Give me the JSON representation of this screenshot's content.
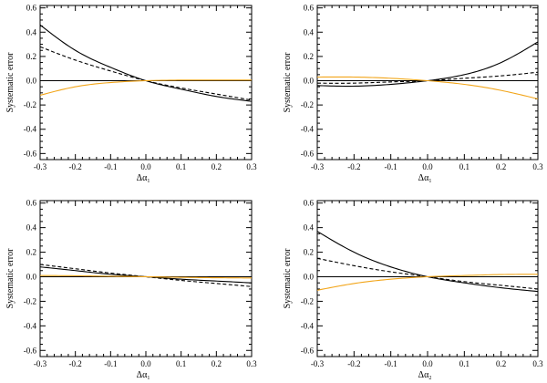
{
  "colors": {
    "axes": "#000000",
    "series_black": "#000000",
    "series_orange": "#f2a51a"
  },
  "chart_data": [
    {
      "type": "line",
      "ylabel": "Systematic error",
      "xlabel_symbol": "Δα",
      "xlabel_subscript": "1",
      "xlim": [
        -0.3,
        0.3
      ],
      "ylim": [
        -0.65,
        0.62
      ],
      "xticks": [
        -0.3,
        -0.2,
        -0.1,
        0.0,
        0.1,
        0.2,
        0.3
      ],
      "xtick_labels": [
        "-0.3",
        "-0.2",
        "-0.1",
        "0.0",
        "0.1",
        "0.2",
        "0.3"
      ],
      "yticks": [
        -0.6,
        -0.4,
        -0.2,
        0.0,
        0.2,
        0.4,
        0.6
      ],
      "ytick_labels": [
        "-0.6",
        "-0.4",
        "-0.2",
        "0.0",
        "0.2",
        "0.4",
        "0.6"
      ],
      "reference_y": 0,
      "series": [
        {
          "style": "solid",
          "color": "black",
          "x": [
            -0.3,
            -0.2,
            -0.1,
            0.0,
            0.1,
            0.2,
            0.3
          ],
          "y": [
            0.46,
            0.25,
            0.11,
            0.0,
            -0.07,
            -0.13,
            -0.17
          ]
        },
        {
          "style": "dashed",
          "color": "black",
          "x": [
            -0.3,
            -0.2,
            -0.1,
            0.0,
            0.1,
            0.2,
            0.3
          ],
          "y": [
            0.28,
            0.17,
            0.08,
            0.0,
            -0.06,
            -0.11,
            -0.16
          ]
        },
        {
          "style": "solid",
          "color": "orange",
          "x": [
            -0.3,
            -0.2,
            -0.1,
            0.0,
            0.1,
            0.2,
            0.3
          ],
          "y": [
            -0.12,
            -0.05,
            -0.015,
            0.0,
            0.005,
            0.005,
            0.005
          ]
        }
      ]
    },
    {
      "type": "line",
      "ylabel": "Systematic error",
      "xlabel_symbol": "Δα",
      "xlabel_subscript": "1",
      "xlim": [
        -0.3,
        0.3
      ],
      "ylim": [
        -0.65,
        0.62
      ],
      "xticks": [
        -0.3,
        -0.2,
        -0.1,
        0.0,
        0.1,
        0.2,
        0.3
      ],
      "xtick_labels": [
        "-0.3",
        "-0.2",
        "-0.1",
        "0.0",
        "0.1",
        "0.2",
        "0.3"
      ],
      "yticks": [
        -0.6,
        -0.4,
        -0.2,
        0.0,
        0.2,
        0.4,
        0.6
      ],
      "ytick_labels": [
        "-0.6",
        "-0.4",
        "-0.2",
        "0.0",
        "0.2",
        "0.4",
        "0.6"
      ],
      "reference_y": 0,
      "series": [
        {
          "style": "solid",
          "color": "black",
          "x": [
            -0.3,
            -0.2,
            -0.1,
            0.0,
            0.1,
            0.2,
            0.3
          ],
          "y": [
            -0.04,
            -0.045,
            -0.03,
            0.0,
            0.05,
            0.15,
            0.32
          ]
        },
        {
          "style": "dashed",
          "color": "black",
          "x": [
            -0.3,
            -0.2,
            -0.1,
            0.0,
            0.1,
            0.2,
            0.3
          ],
          "y": [
            -0.02,
            -0.02,
            -0.01,
            0.0,
            0.02,
            0.04,
            0.07
          ]
        },
        {
          "style": "solid",
          "color": "orange",
          "x": [
            -0.3,
            -0.2,
            -0.1,
            0.0,
            0.1,
            0.2,
            0.3
          ],
          "y": [
            0.03,
            0.03,
            0.02,
            0.0,
            -0.03,
            -0.08,
            -0.15
          ]
        }
      ]
    },
    {
      "type": "line",
      "ylabel": "Systematic error",
      "xlabel_symbol": "Δα",
      "xlabel_subscript": "1",
      "xlim": [
        -0.3,
        0.3
      ],
      "ylim": [
        -0.65,
        0.62
      ],
      "xticks": [
        -0.3,
        -0.2,
        -0.1,
        0.0,
        0.1,
        0.2,
        0.3
      ],
      "xtick_labels": [
        "-0.3",
        "-0.2",
        "-0.1",
        "0.0",
        "0.1",
        "0.2",
        "0.3"
      ],
      "yticks": [
        -0.6,
        -0.4,
        -0.2,
        0.0,
        0.2,
        0.4,
        0.6
      ],
      "ytick_labels": [
        "-0.6",
        "-0.4",
        "-0.2",
        "0.0",
        "0.2",
        "0.4",
        "0.6"
      ],
      "reference_y": 0,
      "series": [
        {
          "style": "solid",
          "color": "black",
          "x": [
            -0.3,
            -0.2,
            -0.1,
            0.0,
            0.1,
            0.2,
            0.3
          ],
          "y": [
            0.08,
            0.05,
            0.02,
            0.0,
            -0.02,
            -0.035,
            -0.05
          ]
        },
        {
          "style": "dashed",
          "color": "black",
          "x": [
            -0.3,
            -0.2,
            -0.1,
            0.0,
            0.1,
            0.2,
            0.3
          ],
          "y": [
            0.1,
            0.065,
            0.03,
            0.0,
            -0.03,
            -0.055,
            -0.08
          ]
        },
        {
          "style": "solid",
          "color": "orange",
          "x": [
            -0.3,
            -0.2,
            -0.1,
            0.0,
            0.1,
            0.2,
            0.3
          ],
          "y": [
            0.01,
            0.008,
            0.004,
            0.0,
            -0.005,
            -0.008,
            -0.01
          ]
        }
      ]
    },
    {
      "type": "line",
      "ylabel": "Systematic error",
      "xlabel_symbol": "Δα",
      "xlabel_subscript": "2",
      "xlim": [
        -0.3,
        0.3
      ],
      "ylim": [
        -0.65,
        0.62
      ],
      "xticks": [
        -0.3,
        -0.2,
        -0.1,
        0.0,
        0.1,
        0.2,
        0.3
      ],
      "xtick_labels": [
        "-0.3",
        "-0.2",
        "-0.1",
        "0.0",
        "0.1",
        "0.2",
        "0.3"
      ],
      "yticks": [
        -0.6,
        -0.4,
        -0.2,
        0.0,
        0.2,
        0.4,
        0.6
      ],
      "ytick_labels": [
        "-0.6",
        "-0.4",
        "-0.2",
        "0.0",
        "0.2",
        "0.4",
        "0.6"
      ],
      "reference_y": 0,
      "series": [
        {
          "style": "solid",
          "color": "black",
          "x": [
            -0.3,
            -0.2,
            -0.1,
            0.0,
            0.1,
            0.2,
            0.3
          ],
          "y": [
            0.37,
            0.2,
            0.08,
            0.0,
            -0.05,
            -0.09,
            -0.12
          ]
        },
        {
          "style": "dashed",
          "color": "black",
          "x": [
            -0.3,
            -0.2,
            -0.1,
            0.0,
            0.1,
            0.2,
            0.3
          ],
          "y": [
            0.15,
            0.09,
            0.04,
            0.0,
            -0.04,
            -0.07,
            -0.1
          ]
        },
        {
          "style": "solid",
          "color": "orange",
          "x": [
            -0.3,
            -0.2,
            -0.1,
            0.0,
            0.1,
            0.2,
            0.3
          ],
          "y": [
            -0.11,
            -0.055,
            -0.02,
            0.0,
            0.01,
            0.018,
            0.02
          ]
        }
      ]
    }
  ]
}
